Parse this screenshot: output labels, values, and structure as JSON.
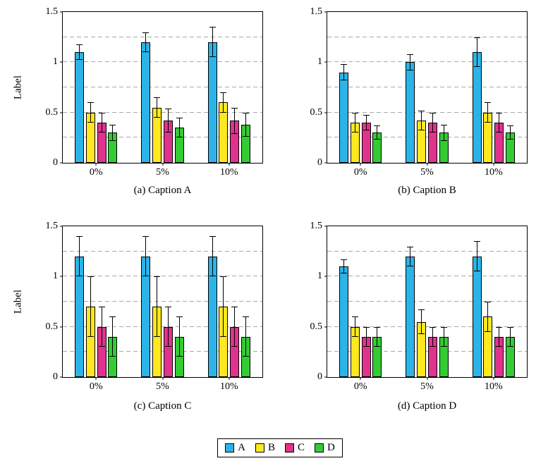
{
  "figure": {
    "ylim": [
      0,
      1.5
    ],
    "y_ticks": [
      {
        "v": 0,
        "label": "0"
      },
      {
        "v": 0.5,
        "label": "0.5"
      },
      {
        "v": 1,
        "label": "1"
      },
      {
        "v": 1.5,
        "label": "1.5"
      }
    ],
    "gridlines": [
      0.25,
      0.5,
      0.75,
      1.0,
      1.25
    ],
    "grid_style": "dashed",
    "categories": [
      "0%",
      "5%",
      "10%"
    ],
    "series_names": [
      "A",
      "B",
      "C",
      "D"
    ]
  },
  "chart_data": [
    {
      "type": "bar",
      "caption": "(a) Caption A",
      "title": "",
      "xlabel": "",
      "ylabel": "Label",
      "ylim": [
        0,
        1.5
      ],
      "categories": [
        "0%",
        "5%",
        "10%"
      ],
      "series": [
        {
          "name": "A",
          "color": "#2cb4e8",
          "values": [
            1.1,
            1.2,
            1.2
          ],
          "errors": [
            0.08,
            0.1,
            0.15
          ]
        },
        {
          "name": "B",
          "color": "#ffe81f",
          "values": [
            0.5,
            0.55,
            0.6
          ],
          "errors": [
            0.1,
            0.1,
            0.1
          ]
        },
        {
          "name": "C",
          "color": "#e0338d",
          "values": [
            0.4,
            0.42,
            0.42
          ],
          "errors": [
            0.1,
            0.12,
            0.13
          ]
        },
        {
          "name": "D",
          "color": "#33cc33",
          "values": [
            0.3,
            0.35,
            0.38
          ],
          "errors": [
            0.08,
            0.1,
            0.12
          ]
        }
      ]
    },
    {
      "type": "bar",
      "caption": "(b) Caption B",
      "title": "",
      "xlabel": "",
      "ylabel": "",
      "ylim": [
        0,
        1.5
      ],
      "categories": [
        "0%",
        "5%",
        "10%"
      ],
      "series": [
        {
          "name": "A",
          "color": "#2cb4e8",
          "values": [
            0.9,
            1.0,
            1.1
          ],
          "errors": [
            0.08,
            0.08,
            0.15
          ]
        },
        {
          "name": "B",
          "color": "#ffe81f",
          "values": [
            0.4,
            0.42,
            0.5
          ],
          "errors": [
            0.1,
            0.1,
            0.1
          ]
        },
        {
          "name": "C",
          "color": "#e0338d",
          "values": [
            0.4,
            0.4,
            0.4
          ],
          "errors": [
            0.08,
            0.1,
            0.1
          ]
        },
        {
          "name": "D",
          "color": "#33cc33",
          "values": [
            0.3,
            0.3,
            0.3
          ],
          "errors": [
            0.07,
            0.08,
            0.07
          ]
        }
      ]
    },
    {
      "type": "bar",
      "caption": "(c) Caption C",
      "title": "",
      "xlabel": "",
      "ylabel": "Label",
      "ylim": [
        0,
        1.5
      ],
      "categories": [
        "0%",
        "5%",
        "10%"
      ],
      "series": [
        {
          "name": "A",
          "color": "#2cb4e8",
          "values": [
            1.2,
            1.2,
            1.2
          ],
          "errors": [
            0.2,
            0.2,
            0.2
          ]
        },
        {
          "name": "B",
          "color": "#ffe81f",
          "values": [
            0.7,
            0.7,
            0.7
          ],
          "errors": [
            0.3,
            0.3,
            0.3
          ]
        },
        {
          "name": "C",
          "color": "#e0338d",
          "values": [
            0.5,
            0.5,
            0.5
          ],
          "errors": [
            0.2,
            0.2,
            0.2
          ]
        },
        {
          "name": "D",
          "color": "#33cc33",
          "values": [
            0.4,
            0.4,
            0.4
          ],
          "errors": [
            0.2,
            0.2,
            0.2
          ]
        }
      ]
    },
    {
      "type": "bar",
      "caption": "(d) Caption D",
      "title": "",
      "xlabel": "",
      "ylabel": "",
      "ylim": [
        0,
        1.5
      ],
      "categories": [
        "0%",
        "5%",
        "10%"
      ],
      "series": [
        {
          "name": "A",
          "color": "#2cb4e8",
          "values": [
            1.1,
            1.2,
            1.2
          ],
          "errors": [
            0.07,
            0.1,
            0.15
          ]
        },
        {
          "name": "B",
          "color": "#ffe81f",
          "values": [
            0.5,
            0.55,
            0.6
          ],
          "errors": [
            0.1,
            0.12,
            0.15
          ]
        },
        {
          "name": "C",
          "color": "#e0338d",
          "values": [
            0.4,
            0.4,
            0.4
          ],
          "errors": [
            0.1,
            0.1,
            0.1
          ]
        },
        {
          "name": "D",
          "color": "#33cc33",
          "values": [
            0.4,
            0.4,
            0.4
          ],
          "errors": [
            0.1,
            0.1,
            0.1
          ]
        }
      ]
    }
  ],
  "legend": {
    "entries": [
      {
        "label": "A",
        "color": "#2cb4e8"
      },
      {
        "label": "B",
        "color": "#ffe81f"
      },
      {
        "label": "C",
        "color": "#e0338d"
      },
      {
        "label": "D",
        "color": "#33cc33"
      }
    ]
  }
}
